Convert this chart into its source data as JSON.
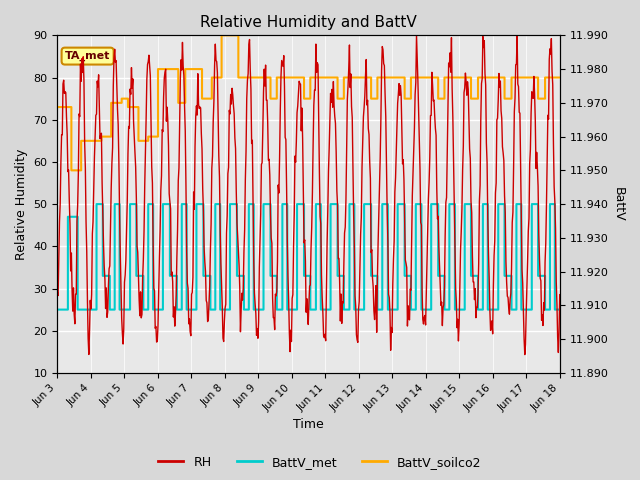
{
  "title": "Relative Humidity and BattV",
  "xlabel": "Time",
  "ylabel_left": "Relative Humidity",
  "ylabel_right": "BattV",
  "ylim_left": [
    10,
    90
  ],
  "ylim_right": [
    11.89,
    11.99
  ],
  "yticks_left": [
    10,
    20,
    30,
    40,
    50,
    60,
    70,
    80,
    90
  ],
  "yticks_right": [
    11.89,
    11.9,
    11.91,
    11.92,
    11.93,
    11.94,
    11.95,
    11.96,
    11.97,
    11.98,
    11.99
  ],
  "x_labels": [
    "Jun 3",
    "Jun 4",
    "Jun 5",
    "Jun 6",
    "Jun 7",
    "Jun 8",
    "Jun 9",
    "Jun 10",
    "Jun 11",
    "Jun 12",
    "Jun 13",
    "Jun 14",
    "Jun 15",
    "Jun 16",
    "Jun 17",
    "Jun 18"
  ],
  "annotation_text": "TA_met",
  "annotation_color": "#cc8800",
  "rh_color": "#cc0000",
  "battv_met_color": "#00cccc",
  "battv_soilco2_color": "#ffaa00",
  "background_color": "#d8d8d8",
  "plot_bg_color": "#e8e8e8",
  "figsize": [
    6.4,
    4.8
  ],
  "dpi": 100
}
